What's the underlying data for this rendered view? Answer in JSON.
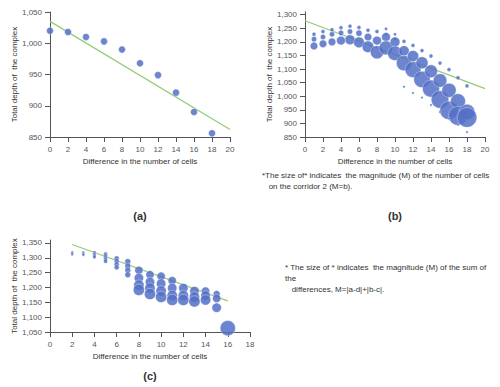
{
  "chart_data": [
    {
      "type": "scatter",
      "title": "(a)",
      "xlabel": "Difference in the number of cells",
      "ylabel": "Total depth of  the complex",
      "xlim": [
        0,
        20
      ],
      "ylim": [
        850,
        1050
      ],
      "xticks": [
        0,
        2,
        4,
        6,
        8,
        10,
        12,
        14,
        16,
        18,
        20
      ],
      "yticks": [
        850,
        900,
        950,
        1000,
        1050
      ],
      "grid": false,
      "series": [
        {
          "type": "scatter",
          "x": [
            0,
            2,
            4,
            6,
            8,
            10,
            12,
            14,
            16,
            18
          ],
          "values": [
            1020,
            1018,
            1010,
            1003,
            990,
            968,
            949,
            921,
            890,
            856
          ]
        },
        {
          "type": "line",
          "x": [
            0,
            20
          ],
          "values": [
            1035,
            862
          ]
        }
      ]
    },
    {
      "type": "scatter",
      "title": "(b)",
      "xlabel": "Difference in the number of cells",
      "ylabel": "Total depth of  the complex",
      "note": "*The size of* indicates  the magnitude (M) of the number of cells\n   on the corridor 2 (M=b).",
      "xlim": [
        0,
        20
      ],
      "ylim": [
        850,
        1310
      ],
      "xticks": [
        0,
        2,
        4,
        6,
        8,
        10,
        12,
        14,
        16,
        18,
        20
      ],
      "yticks": [
        850,
        900,
        950,
        1000,
        1050,
        1100,
        1150,
        1200,
        1250,
        1300
      ],
      "grid": false,
      "series": [
        {
          "type": "scatter",
          "x": [
            1,
            1,
            1,
            2,
            2,
            2,
            3,
            3,
            3,
            4,
            4,
            4,
            5,
            5,
            5,
            6,
            6,
            6,
            7,
            7,
            7,
            8,
            8,
            8,
            9,
            9,
            9,
            9,
            10,
            10,
            10,
            10,
            11,
            11,
            11,
            12,
            12,
            12,
            13,
            13,
            13,
            14,
            14,
            14,
            15,
            15,
            15,
            16,
            16,
            16,
            17,
            17,
            17,
            18,
            18,
            18,
            11,
            12,
            13,
            14,
            15,
            16,
            17,
            18
          ],
          "values": [
            1228,
            1210,
            1185,
            1238,
            1218,
            1193,
            1245,
            1228,
            1200,
            1252,
            1233,
            1205,
            1258,
            1238,
            1208,
            1253,
            1232,
            1198,
            1243,
            1218,
            1182,
            1238,
            1205,
            1162,
            1248,
            1228,
            1218,
            1178,
            1228,
            1210,
            1200,
            1158,
            1202,
            1167,
            1122,
            1187,
            1148,
            1098,
            1168,
            1123,
            1062,
            1148,
            1092,
            1028,
            1122,
            1058,
            988,
            1098,
            1022,
            948,
            1068,
            982,
            928,
            1038,
            942,
            922,
            1035,
            1012,
            995,
            968,
            942,
            918,
            895,
            868
          ],
          "sizes": [
            8,
            15,
            30,
            8,
            15,
            30,
            8,
            15,
            30,
            8,
            15,
            40,
            8,
            15,
            50,
            8,
            20,
            60,
            8,
            30,
            70,
            8,
            40,
            90,
            5,
            5,
            40,
            100,
            5,
            5,
            50,
            110,
            8,
            55,
            120,
            8,
            65,
            130,
            8,
            75,
            140,
            8,
            85,
            150,
            8,
            95,
            160,
            8,
            105,
            175,
            8,
            115,
            185,
            8,
            125,
            200,
            3,
            3,
            3,
            3,
            3,
            3,
            3,
            3
          ]
        },
        {
          "type": "line",
          "x": [
            0,
            20
          ],
          "values": [
            1278,
            1028
          ]
        }
      ]
    },
    {
      "type": "scatter",
      "title": "(c)",
      "xlabel": "Difference in the number of cells",
      "ylabel": "Total depth of  the complex",
      "note": "* The size of * indicates  the magnitude (M) of the sum of the\n   differences, M=|a-d|+|b-c|.",
      "xlim": [
        0,
        18
      ],
      "ylim": [
        1050,
        1360
      ],
      "xticks": [
        0,
        2,
        4,
        6,
        8,
        10,
        12,
        14,
        16,
        18
      ],
      "yticks": [
        1050,
        1100,
        1150,
        1200,
        1250,
        1300,
        1350
      ],
      "grid": false,
      "series": [
        {
          "type": "scatter",
          "x": [
            2,
            2,
            3,
            3,
            3,
            4,
            4,
            4,
            4,
            5,
            5,
            5,
            5,
            5,
            6,
            6,
            6,
            6,
            7,
            7,
            7,
            7,
            8,
            8,
            8,
            8,
            9,
            9,
            9,
            9,
            10,
            10,
            10,
            10,
            11,
            11,
            11,
            11,
            12,
            12,
            12,
            13,
            13,
            13,
            14,
            14,
            14,
            15,
            15,
            15,
            16
          ],
          "values": [
            1318,
            1312,
            1318,
            1314,
            1310,
            1318,
            1313,
            1308,
            1303,
            1313,
            1307,
            1300,
            1294,
            1288,
            1298,
            1288,
            1278,
            1268,
            1287,
            1272,
            1258,
            1243,
            1258,
            1232,
            1208,
            1192,
            1243,
            1218,
            1198,
            1178,
            1238,
            1213,
            1188,
            1168,
            1223,
            1198,
            1173,
            1158,
            1198,
            1173,
            1158,
            1188,
            1168,
            1153,
            1188,
            1173,
            1158,
            1178,
            1163,
            1132,
            1063
          ],
          "sizes": [
            4,
            4,
            4,
            4,
            4,
            6,
            6,
            6,
            6,
            8,
            8,
            8,
            8,
            8,
            13,
            13,
            13,
            13,
            18,
            18,
            18,
            18,
            35,
            45,
            55,
            65,
            35,
            45,
            55,
            65,
            35,
            45,
            55,
            65,
            35,
            45,
            55,
            65,
            45,
            55,
            65,
            45,
            55,
            65,
            35,
            45,
            55,
            25,
            35,
            45,
            120
          ]
        },
        {
          "type": "line",
          "x": [
            2,
            16
          ],
          "values": [
            1345,
            1155
          ]
        }
      ]
    }
  ]
}
